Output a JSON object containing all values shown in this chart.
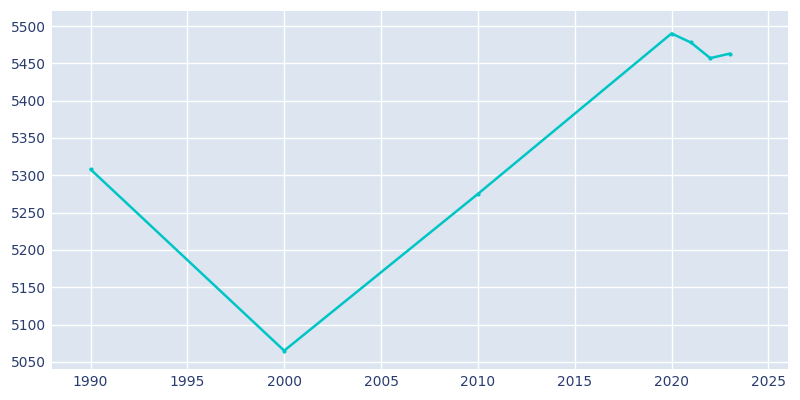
{
  "years": [
    1990,
    2000,
    2010,
    2020,
    2021,
    2022,
    2023
  ],
  "population": [
    5308,
    5065,
    5275,
    5490,
    5478,
    5457,
    5463
  ],
  "line_color": "#00C5C5",
  "bg_color": "#FFFFFF",
  "plot_bg_color": "#DCE5F0",
  "grid_color": "#FFFFFF",
  "text_color": "#2A3C6E",
  "ylim": [
    5040,
    5520
  ],
  "yticks": [
    5050,
    5100,
    5150,
    5200,
    5250,
    5300,
    5350,
    5400,
    5450,
    5500
  ],
  "xticks": [
    1990,
    1995,
    2000,
    2005,
    2010,
    2015,
    2020,
    2025
  ],
  "xlim": [
    1988,
    2026
  ],
  "line_width": 1.8,
  "marker": "o",
  "marker_size": 3
}
